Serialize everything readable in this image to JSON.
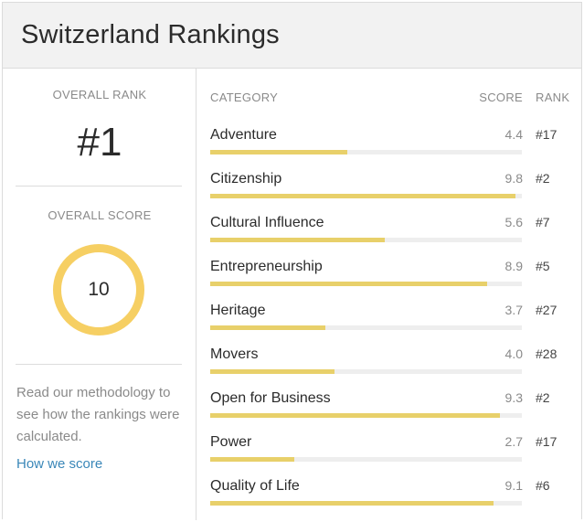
{
  "title": "Switzerland Rankings",
  "left": {
    "overall_rank_label": "OVERALL RANK",
    "overall_rank": "#1",
    "overall_score_label": "OVERALL SCORE",
    "overall_score": "10",
    "methodology_text": "Read our methodology to see how the rankings were calculated.",
    "how_link": "How we score"
  },
  "table": {
    "headers": {
      "category": "CATEGORY",
      "score": "SCORE",
      "rank": "RANK"
    },
    "max_score": 10,
    "bar_color": "#e8d06a",
    "rows": [
      {
        "name": "Adventure",
        "score": "4.4",
        "rank": "#17"
      },
      {
        "name": "Citizenship",
        "score": "9.8",
        "rank": "#2"
      },
      {
        "name": "Cultural Influence",
        "score": "5.6",
        "rank": "#7"
      },
      {
        "name": "Entrepreneurship",
        "score": "8.9",
        "rank": "#5"
      },
      {
        "name": "Heritage",
        "score": "3.7",
        "rank": "#27"
      },
      {
        "name": "Movers",
        "score": "4.0",
        "rank": "#28"
      },
      {
        "name": "Open for Business",
        "score": "9.3",
        "rank": "#2"
      },
      {
        "name": "Power",
        "score": "2.7",
        "rank": "#17"
      },
      {
        "name": "Quality of Life",
        "score": "9.1",
        "rank": "#6"
      }
    ]
  },
  "colors": {
    "ring": "#f6cf63",
    "link": "#3a87b8",
    "header_bg": "#f2f2f2"
  }
}
